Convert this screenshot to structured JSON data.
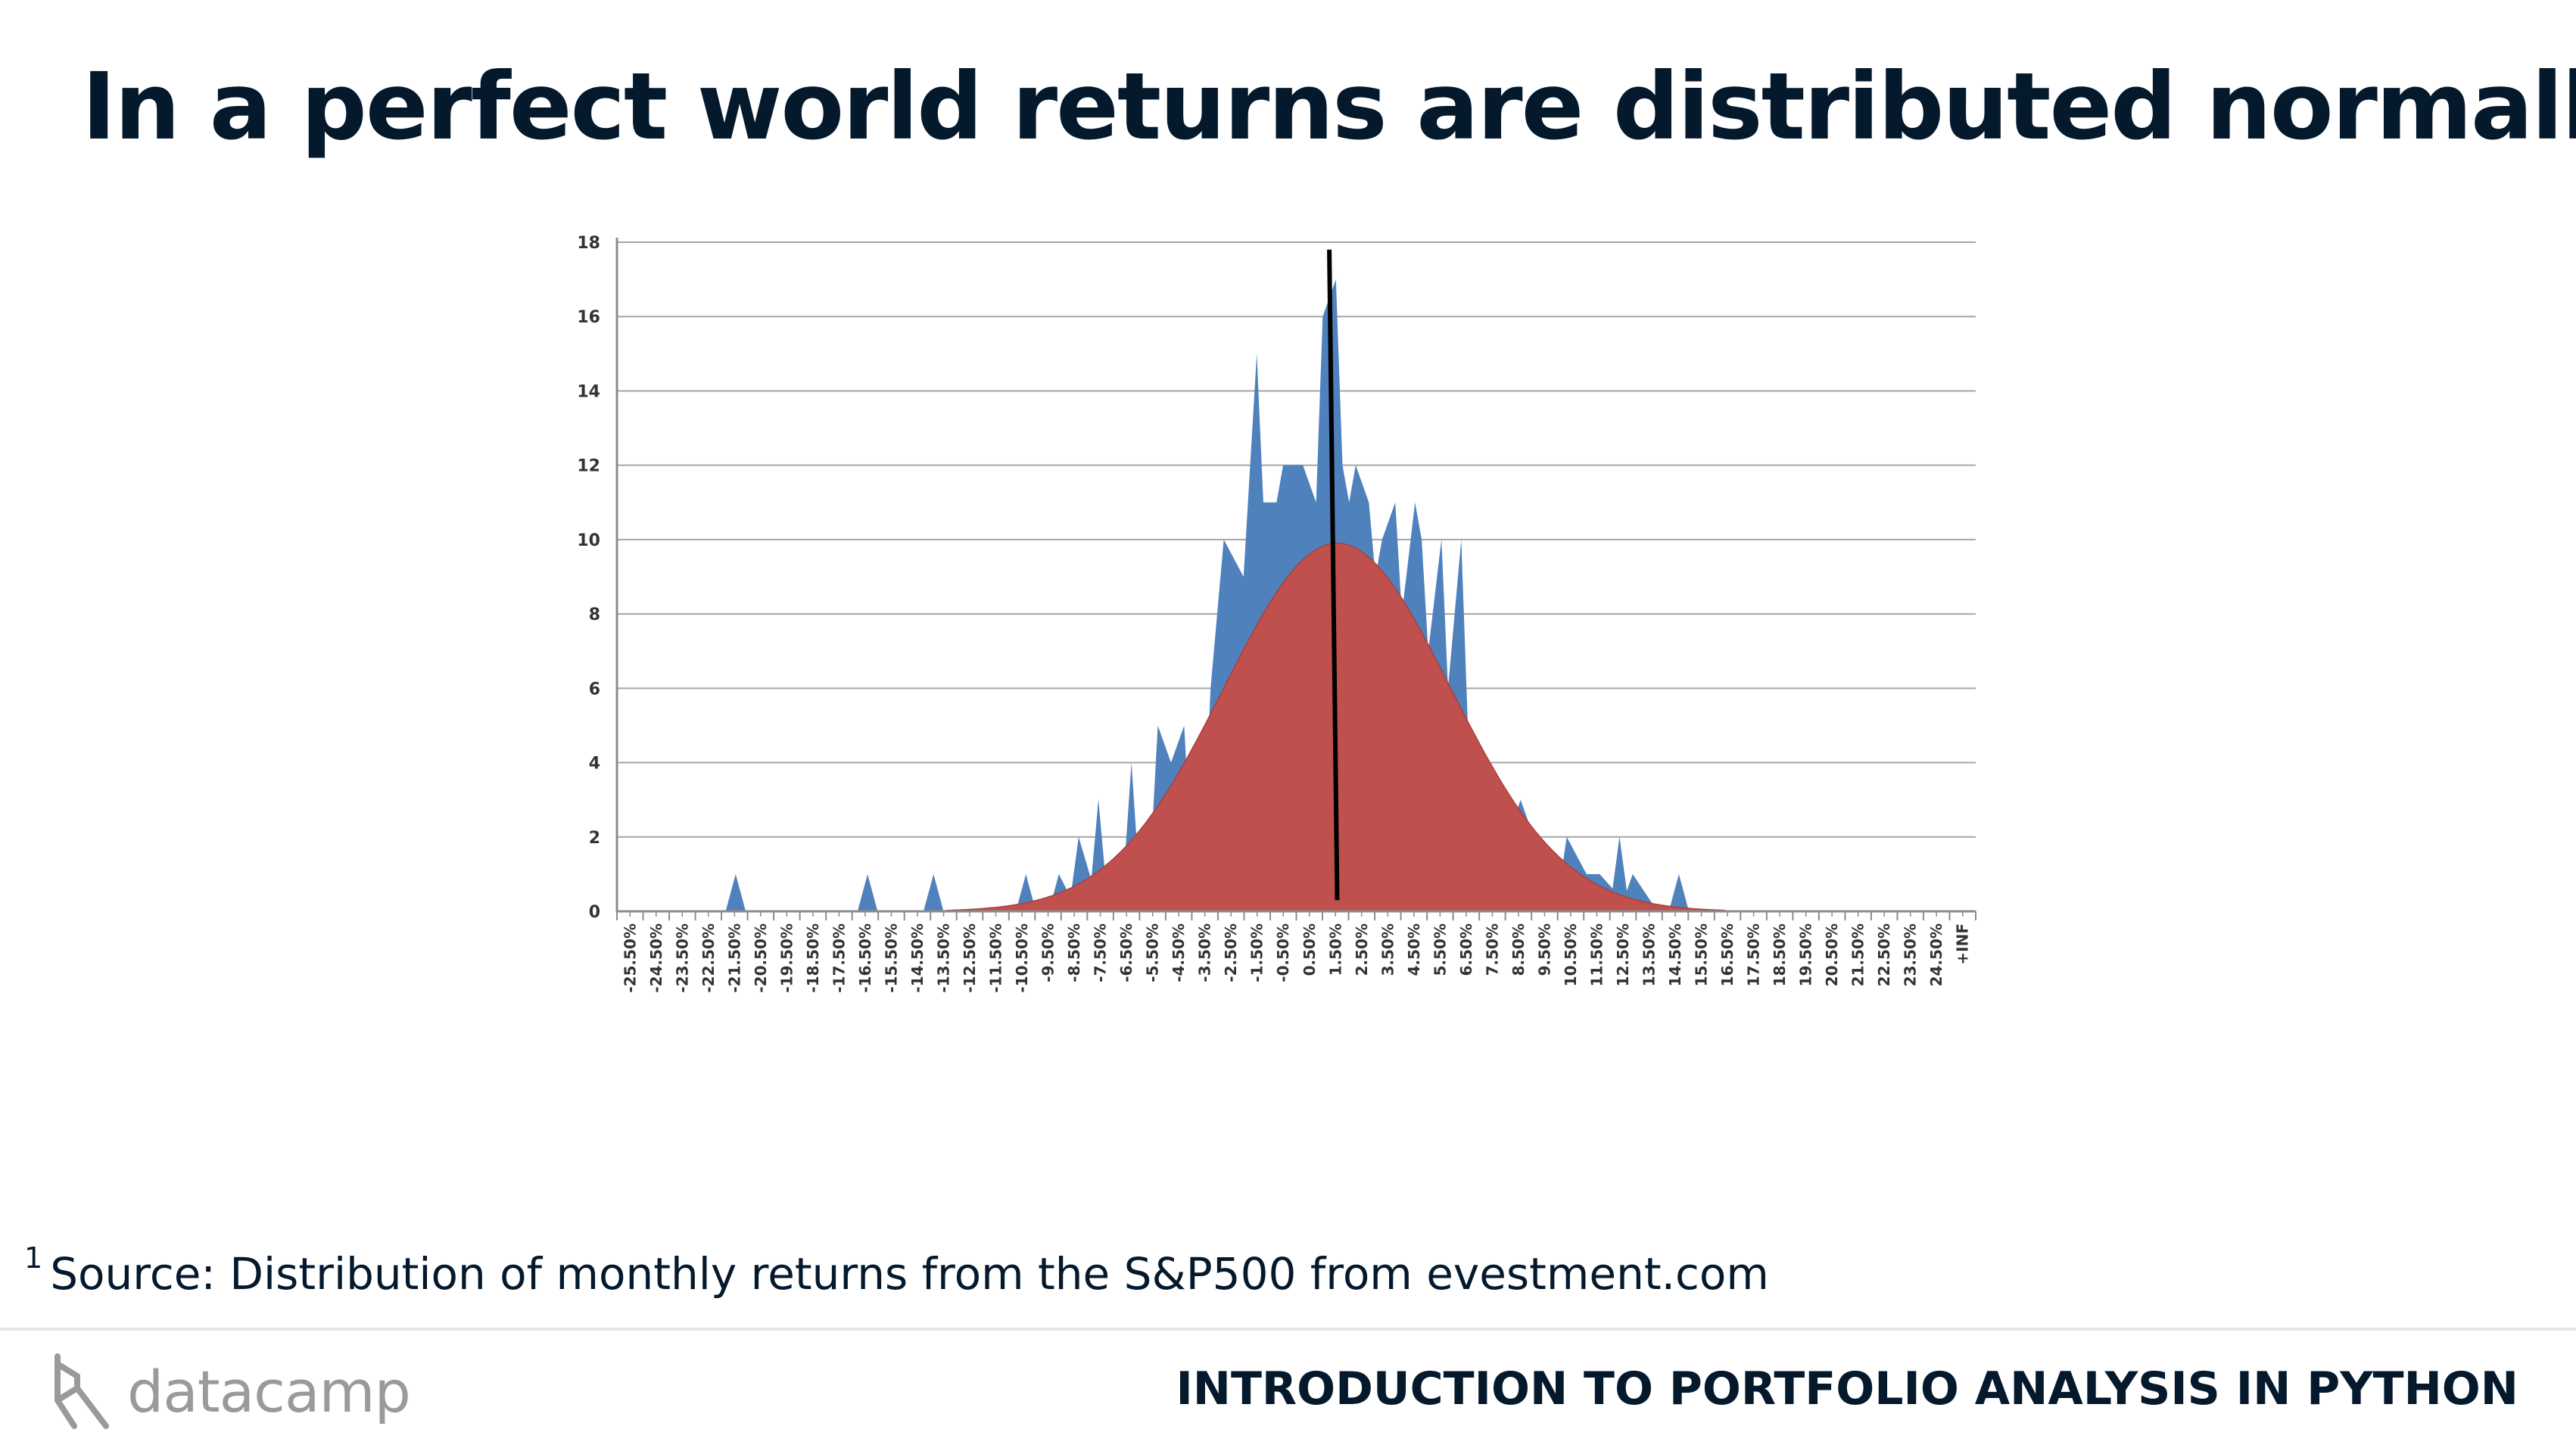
{
  "slide": {
    "title": "In a perfect world returns are distributed normally",
    "footnote_marker": "1",
    "footnote": "Source: Distribution of monthly returns from the S&P500 from evestment.com",
    "logo_text": "datacamp",
    "course_title": "INTRODUCTION TO PORTFOLIO ANALYSIS IN PYTHON"
  },
  "colors": {
    "title": "#05192d",
    "histogram": "#4f81bd",
    "normal_curve": "#c0504d",
    "mean_line": "#000000",
    "grid": "#a6a6a6",
    "logo": "#9a9a9a"
  },
  "chart_data": {
    "type": "area",
    "title": "",
    "xlabel": "",
    "ylabel": "",
    "ylim": [
      0,
      18
    ],
    "yticks": [
      0,
      2,
      4,
      6,
      8,
      10,
      12,
      14,
      16,
      18
    ],
    "grid": true,
    "legend": "none",
    "x_tick_labels": [
      "-25.50%",
      "-24.50%",
      "-23.50%",
      "-22.50%",
      "-21.50%",
      "-20.50%",
      "-19.50%",
      "-18.50%",
      "-17.50%",
      "-16.50%",
      "-15.50%",
      "-14.50%",
      "-13.50%",
      "-12.50%",
      "-11.50%",
      "-10.50%",
      "-9.50%",
      "-8.50%",
      "-7.50%",
      "-6.50%",
      "-5.50%",
      "-4.50%",
      "-3.50%",
      "-2.50%",
      "-1.50%",
      "-0.50%",
      "0.50%",
      "1.50%",
      "2.50%",
      "3.50%",
      "4.50%",
      "5.50%",
      "6.50%",
      "7.50%",
      "8.50%",
      "9.50%",
      "10.50%",
      "11.50%",
      "12.50%",
      "13.50%",
      "14.50%",
      "15.50%",
      "16.50%",
      "17.50%",
      "18.50%",
      "19.50%",
      "20.50%",
      "21.50%",
      "22.50%",
      "23.50%",
      "24.50%",
      "+INF"
    ],
    "x_range": [
      -26,
      25.5
    ],
    "series": [
      {
        "kind": "histogram",
        "x": [
          -21.5,
          -16.5,
          -14,
          -10.75,
          -10.5,
          -9.5,
          -9.25,
          -8.75,
          -8.5,
          -8,
          -7.75,
          -6.5,
          -5.5,
          -5,
          -4.5,
          -3.5,
          -3,
          -2.25,
          -1.75,
          -1.5,
          -1,
          -0.75,
          -0.25,
          0,
          0.5,
          0.75,
          1.25,
          1.5,
          1.75,
          2,
          2.5,
          2.75,
          3,
          3.5,
          3.75,
          4.25,
          4.5,
          4.75,
          5.25,
          5.5,
          6,
          6.25,
          6.5,
          7,
          7.5,
          7.75,
          8.25,
          8.75,
          9,
          9.75,
          10,
          10.75,
          11.25,
          11.75,
          12,
          12.25,
          12.5,
          13.25,
          14.25
        ],
        "values": [
          1,
          1,
          1,
          0.2,
          1,
          0.2,
          1,
          0.3,
          2,
          0.8,
          3,
          4,
          5,
          4,
          5,
          6,
          10,
          9,
          15,
          11,
          11,
          12,
          12,
          12,
          11,
          16,
          17,
          12,
          11,
          12,
          11,
          9,
          10,
          11,
          8,
          11,
          10,
          7,
          10,
          6,
          10,
          5,
          4,
          4,
          3,
          2,
          3,
          2,
          2,
          0.8,
          2,
          1,
          1,
          0.6,
          2,
          0.5,
          1,
          0.2,
          1
        ]
      },
      {
        "kind": "normal_curve",
        "mean": 1.3,
        "std_dev": 4.3,
        "peak": 9.9
      }
    ],
    "mean_line": {
      "x_top": 1.0,
      "x_bottom": 1.3,
      "y_top": 17.8,
      "y_bottom": 0.3
    }
  }
}
